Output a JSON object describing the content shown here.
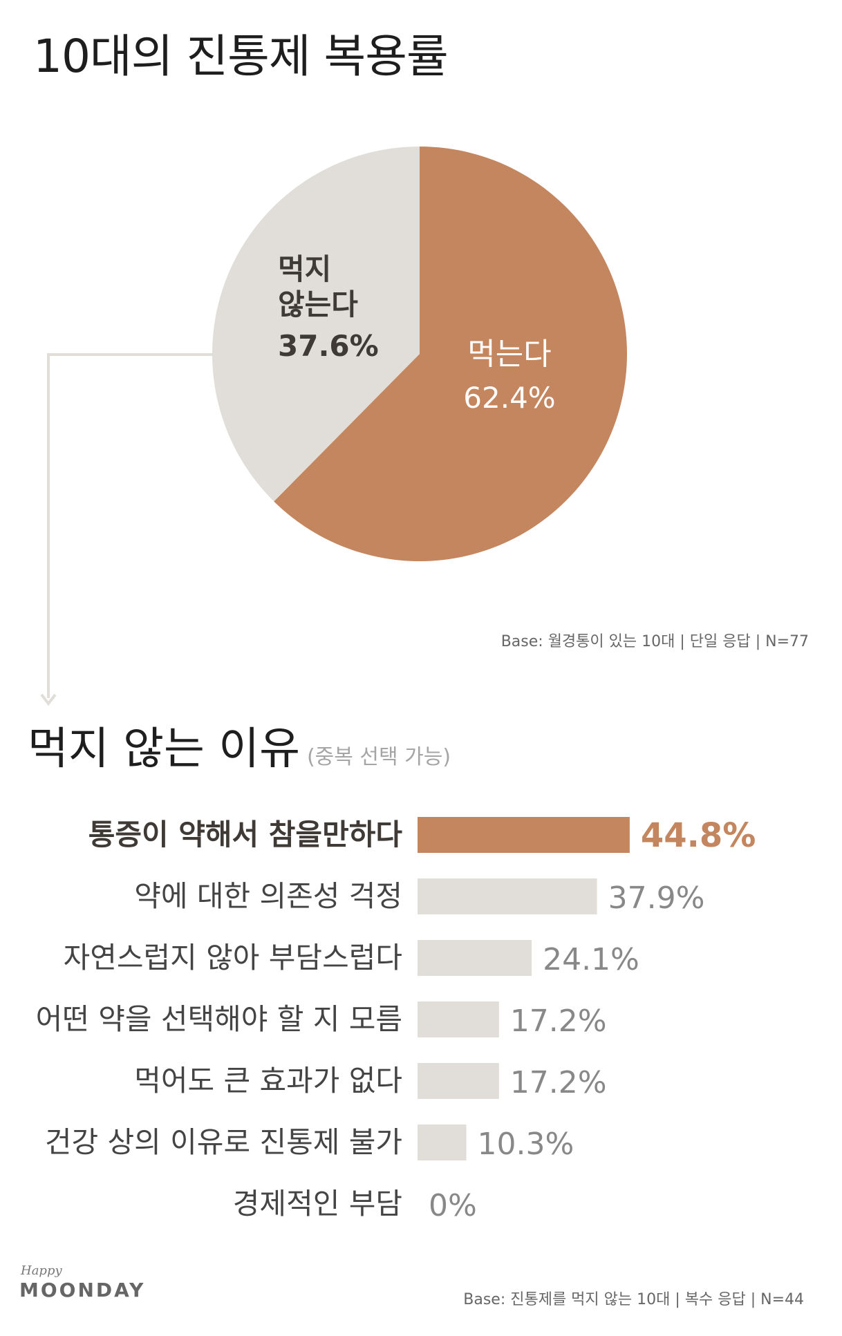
{
  "chart_title": "10대의 진통제 복용률",
  "pie_base_note": "Base: 월경통이 있는 10대 | 단일 응답 | N=77",
  "reasons_title": "먹지 않는 이유",
  "reasons_note": "(중복 선택 가능)",
  "reasons_base_note": "Base: 진통제를 먹지 않는 10대 | 복수 응답 | N=44",
  "logo": {
    "small": "Happy",
    "main": "MOONDAY"
  },
  "colors": {
    "accent": "#c4865e",
    "neutral": "#e1ded9",
    "text_dark": "#3f3a36"
  },
  "chart_data": [
    {
      "type": "pie",
      "title": "10대의 진통제 복용률",
      "slices": [
        {
          "label": "먹는다",
          "value": 62.4,
          "value_label": "62.4%",
          "color": "#c4865e"
        },
        {
          "label_lines": [
            "먹지",
            "않는다"
          ],
          "label": "먹지 않는다",
          "value": 37.6,
          "value_label": "37.6%",
          "color": "#e1ded9"
        }
      ]
    },
    {
      "type": "bar",
      "orientation": "horizontal",
      "title": "먹지 않는 이유",
      "categories": [
        "통증이 약해서 참을만하다",
        "약에 대한 의존성 걱정",
        "자연스럽지 않아 부담스럽다",
        "어떤 약을 선택해야 할 지 모름",
        "먹어도 큰 효과가 없다",
        "건강 상의 이유로 진통제 불가",
        "경제적인 부담"
      ],
      "values": [
        44.8,
        37.9,
        24.1,
        17.2,
        17.2,
        10.3,
        0
      ],
      "value_labels": [
        "44.8%",
        "37.9%",
        "24.1%",
        "17.2%",
        "17.2%",
        "10.3%",
        "0%"
      ],
      "highlight_index": 0
    }
  ]
}
